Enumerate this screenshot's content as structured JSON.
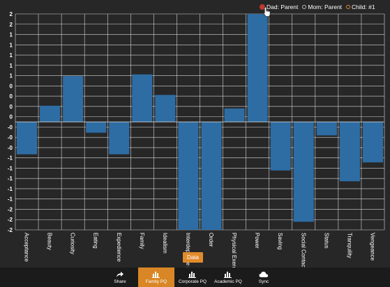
{
  "legend": {
    "items": [
      {
        "label": "Dad: Parent",
        "state": "active"
      },
      {
        "label": "Mom: Parent",
        "state": "off"
      },
      {
        "label": "Child: #1",
        "state": "orange"
      }
    ]
  },
  "data_tab": {
    "label": "Data"
  },
  "nav": {
    "share": "Share",
    "family": "Family PQ",
    "corporate": "Corporate PQ",
    "academic": "Academic PQ",
    "sync": "Sync"
  },
  "chart_data": {
    "type": "bar",
    "title": "",
    "xlabel": "",
    "ylabel": "",
    "ylim": [
      -2,
      2
    ],
    "y_tick_labels": [
      "2",
      "2",
      "1",
      "1",
      "1",
      "1",
      "1",
      "0",
      "0",
      "0",
      "0",
      "-0",
      "-0",
      "-0",
      "-1",
      "-1",
      "-1",
      "-1",
      "-1",
      "-2",
      "-2",
      "-2"
    ],
    "bar_color": "#2e6da4",
    "grid": true,
    "categories": [
      "Acceptance",
      "Beauty",
      "Curiosity",
      "Eating",
      "Expedience",
      "Family",
      "Idealism",
      "Interdependence",
      "Order",
      "Physical Exercise",
      "Power",
      "Saving",
      "Social Contact",
      "Status",
      "Tranquility",
      "Vengeance"
    ],
    "category_labels": [
      "Acceptance",
      "Beauty",
      "Curiosity",
      "Eating",
      "Expedience",
      "Family",
      "Idealism",
      "Interdepende nc",
      "Order",
      "Physical Exerci",
      "Power",
      "Saving",
      "Social Contact",
      "Status",
      "Tranquility",
      "Vengeance"
    ],
    "values": [
      -0.6,
      0.3,
      0.85,
      -0.2,
      -0.6,
      0.88,
      0.5,
      -2.0,
      -2.0,
      0.25,
      2.0,
      -0.9,
      -1.85,
      -0.25,
      -1.1,
      -0.75
    ]
  }
}
